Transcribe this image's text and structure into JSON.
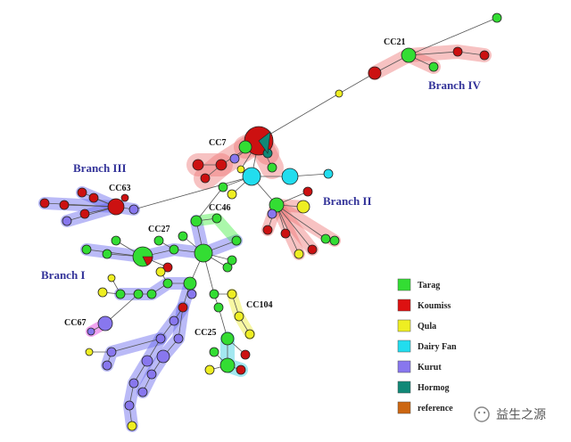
{
  "annotations": {
    "cc21": "CC21",
    "branch_iv": "Branch IV",
    "cc7": "CC7",
    "branch_iii": "Branch III",
    "cc63": "CC63",
    "branch_ii": "Branch II",
    "cc46": "CC46",
    "cc27": "CC27",
    "branch_i": "Branch I",
    "cc104": "CC104",
    "cc67": "CC67",
    "cc25": "CC25"
  },
  "legend": [
    {
      "label": "Tarag",
      "color": "#33dd33"
    },
    {
      "label": "Koumiss",
      "color": "#dd1111"
    },
    {
      "label": "Qula",
      "color": "#eeee22"
    },
    {
      "label": "Dairy Fan",
      "color": "#22ddee"
    },
    {
      "label": "Kurut",
      "color": "#8877ee"
    },
    {
      "label": "Hormog",
      "color": "#118877"
    },
    {
      "label": "reference",
      "color": "#cc6611"
    }
  ],
  "watermark": "益生之源"
}
